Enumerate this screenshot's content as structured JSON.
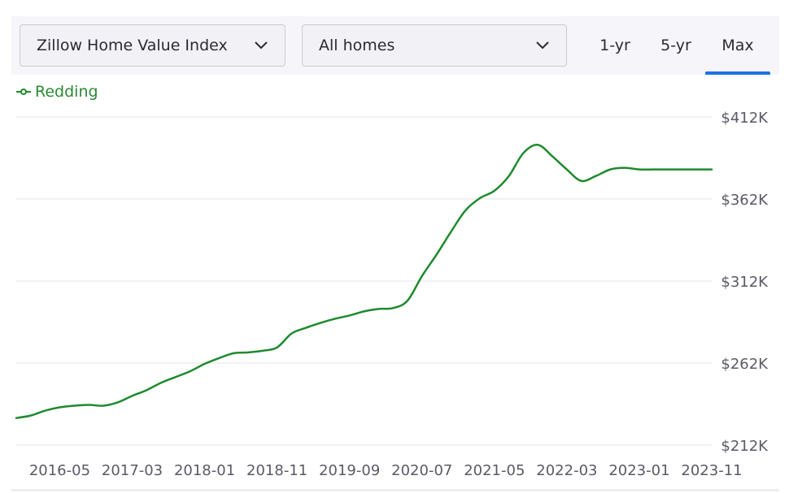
{
  "controls": {
    "metric_label": "Zillow Home Value Index",
    "home_type_label": "All homes",
    "ranges": [
      "1-yr",
      "5-yr",
      "Max"
    ],
    "active_range": "Max"
  },
  "icons": {
    "dropdown": "chevron-down-icon",
    "legend": "legend-line-marker-icon"
  },
  "colors": {
    "series": "#1e8a2e",
    "active_tab": "#1f6fe5",
    "grid": "#e6e6ea",
    "axis_text": "#5a5a66"
  },
  "chart_data": {
    "type": "line",
    "title": "",
    "xlabel": "",
    "ylabel": "",
    "legend_position": "top-left",
    "grid": true,
    "x_tick_labels": [
      "2016-05",
      "2017-03",
      "2018-01",
      "2018-11",
      "2019-09",
      "2020-07",
      "2021-05",
      "2022-03",
      "2023-01",
      "2023-11"
    ],
    "y_tick_labels": [
      "$412K",
      "$362K",
      "$312K",
      "$262K",
      "$212K"
    ],
    "ylim": [
      212,
      412
    ],
    "xlim": [
      "2015-11",
      "2023-11"
    ],
    "series": [
      {
        "name": "Redding",
        "x": [
          "2015-11",
          "2016-01",
          "2016-03",
          "2016-05",
          "2016-07",
          "2016-09",
          "2016-11",
          "2017-01",
          "2017-03",
          "2017-05",
          "2017-07",
          "2017-09",
          "2017-11",
          "2018-01",
          "2018-03",
          "2018-05",
          "2018-07",
          "2018-09",
          "2018-11",
          "2019-01",
          "2019-03",
          "2019-05",
          "2019-07",
          "2019-09",
          "2019-11",
          "2020-01",
          "2020-03",
          "2020-05",
          "2020-07",
          "2020-09",
          "2020-11",
          "2021-01",
          "2021-03",
          "2021-05",
          "2021-07",
          "2021-09",
          "2021-11",
          "2022-01",
          "2022-03",
          "2022-05",
          "2022-07",
          "2022-09",
          "2022-11",
          "2023-01",
          "2023-03",
          "2023-05",
          "2023-07",
          "2023-09",
          "2023-11"
        ],
        "y": [
          228.5,
          230,
          233,
          235,
          236,
          236.5,
          236,
          238,
          242,
          245.5,
          250,
          253.5,
          257,
          261.5,
          265,
          268,
          268.5,
          269.5,
          271.5,
          280,
          283.5,
          286.5,
          289,
          291,
          293.5,
          295,
          295.5,
          300,
          315,
          328,
          342,
          355,
          362.5,
          367,
          376,
          390,
          395,
          388,
          380,
          373,
          376,
          380,
          381,
          380,
          380,
          380,
          380,
          380,
          380
        ]
      }
    ]
  }
}
